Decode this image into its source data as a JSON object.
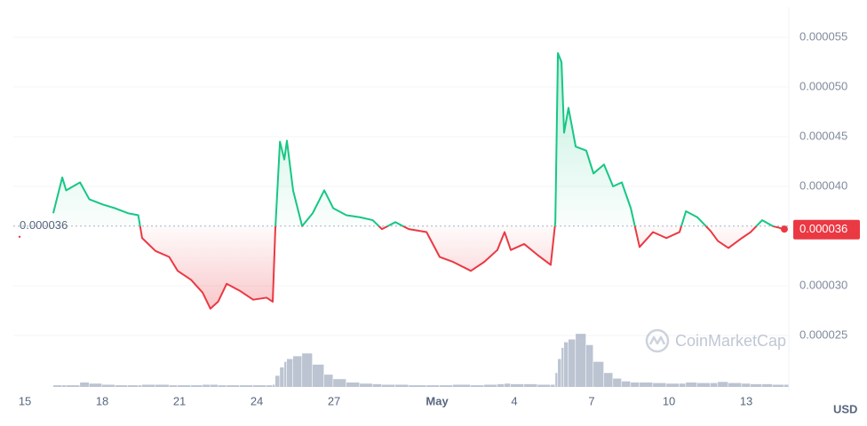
{
  "chart_data": {
    "type": "baseline-line",
    "currency": "USD",
    "watermark": "CoinMarketCap",
    "baseline": 3.6e-05,
    "price_tag": 3.6e-05,
    "up_color": "#16c784",
    "down_color": "#ea3943",
    "volume_color": "#a6b0c3",
    "grid": true,
    "xlim": [
      14.55,
      44.55
    ],
    "xticks": [
      15,
      18,
      21,
      24,
      27,
      {
        "value": 31,
        "label": "May"
      },
      {
        "value": 34,
        "label": "4"
      },
      {
        "value": 37,
        "label": "7"
      },
      {
        "value": 40,
        "label": "10"
      },
      {
        "value": 43,
        "label": "13"
      }
    ],
    "ylim": [
      2e-05,
      5.8e-05
    ],
    "yticks": [
      2.5e-05,
      {
        "value": 3e-05,
        "label": "0.000030"
      },
      {
        "value": 4e-05,
        "label": "0.000040"
      },
      4.5e-05,
      {
        "value": 5e-05,
        "label": "0.000050"
      },
      5.5e-05
    ],
    "volume_lim": [
      0,
      100
    ],
    "x": [
      16.1,
      16.45,
      16.6,
      17.14,
      17.5,
      18.0,
      18.5,
      19.0,
      19.4,
      19.55,
      20.07,
      20.6,
      20.93,
      21.45,
      21.9,
      22.2,
      22.5,
      22.83,
      23.34,
      23.86,
      24.38,
      24.62,
      24.72,
      24.9,
      25.07,
      25.17,
      25.41,
      25.76,
      26.17,
      26.62,
      26.97,
      27.48,
      28.0,
      28.5,
      28.86,
      29.38,
      29.9,
      30.59,
      31.1,
      31.62,
      32.31,
      32.83,
      33.34,
      33.62,
      33.86,
      34.38,
      34.9,
      35.41,
      35.59,
      35.69,
      35.83,
      35.93,
      36.1,
      36.38,
      36.79,
      37.07,
      37.48,
      37.83,
      38.17,
      38.52,
      38.86,
      39.38,
      39.9,
      40.41,
      40.66,
      41.1,
      41.62,
      41.9,
      42.31,
      42.83,
      43.17,
      43.62,
      44.03,
      44.48
    ],
    "values": [
      3.73e-05,
      4.09e-05,
      3.96e-05,
      4.04e-05,
      3.87e-05,
      3.82e-05,
      3.78e-05,
      3.73e-05,
      3.71e-05,
      3.48e-05,
      3.35e-05,
      3.29e-05,
      3.15e-05,
      3.06e-05,
      2.93e-05,
      2.77e-05,
      2.84e-05,
      3.02e-05,
      2.95e-05,
      2.86e-05,
      2.88e-05,
      2.84e-05,
      3.57e-05,
      4.45e-05,
      4.27e-05,
      4.46e-05,
      3.96e-05,
      3.6e-05,
      3.73e-05,
      3.96e-05,
      3.78e-05,
      3.71e-05,
      3.69e-05,
      3.66e-05,
      3.57e-05,
      3.64e-05,
      3.57e-05,
      3.54e-05,
      3.29e-05,
      3.24e-05,
      3.15e-05,
      3.24e-05,
      3.36e-05,
      3.54e-05,
      3.36e-05,
      3.42e-05,
      3.31e-05,
      3.21e-05,
      3.64e-05,
      5.34e-05,
      5.25e-05,
      4.54e-05,
      4.79e-05,
      4.4e-05,
      4.36e-05,
      4.13e-05,
      4.22e-05,
      4e-05,
      4.04e-05,
      3.78e-05,
      3.39e-05,
      3.54e-05,
      3.48e-05,
      3.54e-05,
      3.75e-05,
      3.69e-05,
      3.55e-05,
      3.45e-05,
      3.38e-05,
      3.48e-05,
      3.54e-05,
      3.66e-05,
      3.6e-05,
      3.57e-05
    ],
    "volume": [
      3,
      3,
      3,
      8,
      6,
      4,
      3,
      3,
      3,
      4,
      4,
      3,
      3,
      3,
      4,
      4,
      3,
      3,
      3,
      3,
      3,
      4,
      20,
      35,
      45,
      50,
      55,
      60,
      40,
      22,
      14,
      8,
      6,
      5,
      4,
      4,
      3,
      3,
      3,
      4,
      3,
      4,
      5,
      6,
      5,
      5,
      4,
      4,
      25,
      50,
      70,
      80,
      85,
      95,
      75,
      45,
      25,
      15,
      10,
      8,
      8,
      7,
      6,
      6,
      8,
      7,
      7,
      9,
      7,
      6,
      5,
      5,
      4,
      4
    ]
  }
}
